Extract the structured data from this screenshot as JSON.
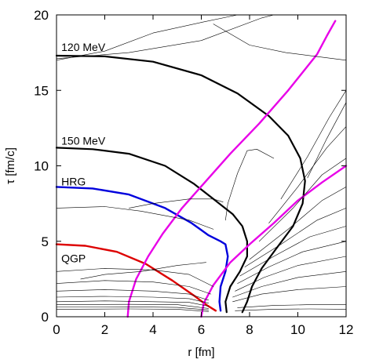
{
  "chart_data": {
    "type": "line",
    "xlabel": "r [fm]",
    "ylabel": "τ [fm/c]",
    "xlim": [
      0,
      12
    ],
    "ylim": [
      0,
      20
    ],
    "x_ticks": [
      0,
      2,
      4,
      6,
      8,
      10,
      12
    ],
    "y_ticks": [
      0,
      5,
      10,
      15,
      20
    ],
    "grid": false,
    "legend": "none",
    "annotations": [
      {
        "text": "120 MeV",
        "x": 0.2,
        "y": 17.6
      },
      {
        "text": "150 MeV",
        "x": 0.2,
        "y": 11.4
      },
      {
        "text": "HRG",
        "x": 0.2,
        "y": 8.7
      },
      {
        "text": "QGP",
        "x": 0.2,
        "y": 3.6
      }
    ],
    "series": [
      {
        "color": "#000000",
        "width": 2.2,
        "points": [
          [
            0,
            17.3
          ],
          [
            2,
            17.25
          ],
          [
            4,
            16.9
          ],
          [
            6,
            16.0
          ],
          [
            7.5,
            14.8
          ],
          [
            8.8,
            13.3
          ],
          [
            9.6,
            12.0
          ],
          [
            10.1,
            10.5
          ],
          [
            10.3,
            9.0
          ],
          [
            10.2,
            7.5
          ],
          [
            9.8,
            6.0
          ],
          [
            9.1,
            4.5
          ],
          [
            8.5,
            3.2
          ],
          [
            8.1,
            2.0
          ],
          [
            7.9,
            1.0
          ],
          [
            7.7,
            0.3
          ]
        ]
      },
      {
        "color": "#000000",
        "width": 2.2,
        "points": [
          [
            0,
            11.2
          ],
          [
            1.5,
            11.1
          ],
          [
            3,
            10.8
          ],
          [
            4.5,
            10.0
          ],
          [
            5.7,
            8.8
          ],
          [
            6.5,
            7.8
          ],
          [
            7.3,
            6.8
          ],
          [
            7.7,
            6.0
          ],
          [
            7.9,
            5.0
          ],
          [
            7.9,
            4.0
          ],
          [
            7.6,
            3.0
          ],
          [
            7.2,
            2.0
          ],
          [
            7.0,
            1.0
          ],
          [
            7.05,
            0.3
          ]
        ]
      },
      {
        "color": "#0000dd",
        "width": 2.4,
        "points": [
          [
            0,
            8.6
          ],
          [
            1.5,
            8.5
          ],
          [
            3,
            8.1
          ],
          [
            4.5,
            7.2
          ],
          [
            5.6,
            6.2
          ],
          [
            6.3,
            5.4
          ],
          [
            6.8,
            5.0
          ],
          [
            7.0,
            4.8
          ],
          [
            7.1,
            4.0
          ],
          [
            7.0,
            3.0
          ],
          [
            6.8,
            2.0
          ],
          [
            6.75,
            1.0
          ],
          [
            6.8,
            0.4
          ]
        ]
      },
      {
        "color": "#dd0000",
        "width": 2.4,
        "points": [
          [
            0,
            4.8
          ],
          [
            1.2,
            4.7
          ],
          [
            2.5,
            4.3
          ],
          [
            3.7,
            3.5
          ],
          [
            4.8,
            2.4
          ],
          [
            5.7,
            1.4
          ],
          [
            6.2,
            0.8
          ],
          [
            6.6,
            0.4
          ]
        ]
      },
      {
        "color": "#e800e8",
        "width": 2.4,
        "points": [
          [
            2.95,
            0
          ],
          [
            3.0,
            1.0
          ],
          [
            3.3,
            2.5
          ],
          [
            3.8,
            4.0
          ],
          [
            4.4,
            5.5
          ],
          [
            5.2,
            7.2
          ],
          [
            6.2,
            9.0
          ],
          [
            7.2,
            10.8
          ],
          [
            8.4,
            12.8
          ],
          [
            9.6,
            15.0
          ],
          [
            10.8,
            17.4
          ],
          [
            11.2,
            18.6
          ],
          [
            11.55,
            19.6
          ]
        ]
      },
      {
        "color": "#e800e8",
        "width": 2.4,
        "points": [
          [
            6.0,
            0
          ],
          [
            6.1,
            0.9
          ],
          [
            6.5,
            2.1
          ],
          [
            7.2,
            3.6
          ],
          [
            8.0,
            4.8
          ],
          [
            9.0,
            6.2
          ],
          [
            10.0,
            7.7
          ],
          [
            11.0,
            8.9
          ],
          [
            12.0,
            10.0
          ]
        ]
      },
      {
        "color": "#000000",
        "width": 0.6,
        "points": [
          [
            0,
            17.0
          ],
          [
            2,
            17.6
          ],
          [
            4,
            18.8
          ],
          [
            6,
            19.5
          ],
          [
            7.5,
            20
          ]
        ]
      },
      {
        "color": "#000000",
        "width": 0.6,
        "points": [
          [
            0,
            17.1
          ],
          [
            3,
            17.5
          ],
          [
            6,
            18.3
          ],
          [
            8.5,
            19.8
          ],
          [
            9,
            20
          ]
        ]
      },
      {
        "color": "#000000",
        "width": 0.6,
        "points": [
          [
            6.5,
            19.4
          ],
          [
            8,
            18.0
          ],
          [
            9.5,
            17.5
          ],
          [
            11,
            17.2
          ],
          [
            12,
            17.0
          ]
        ]
      },
      {
        "color": "#000000",
        "width": 0.6,
        "points": [
          [
            3,
            7.2
          ],
          [
            4,
            7.5
          ],
          [
            5.5,
            7.8
          ],
          [
            6.5,
            7.8
          ],
          [
            6.9,
            7.6
          ]
        ]
      },
      {
        "color": "#000000",
        "width": 0.6,
        "points": [
          [
            0,
            7.2
          ],
          [
            2,
            7.3
          ],
          [
            3.5,
            7.0
          ],
          [
            5.5,
            6.4
          ],
          [
            6.5,
            5.8
          ]
        ]
      },
      {
        "color": "#000000",
        "width": 0.6,
        "points": [
          [
            7.0,
            6.4
          ],
          [
            7.1,
            7.5
          ],
          [
            7.5,
            9.5
          ],
          [
            7.9,
            11.0
          ],
          [
            8.3,
            11.1
          ],
          [
            9.0,
            10.5
          ]
        ]
      },
      {
        "color": "#000000",
        "width": 0.6,
        "points": [
          [
            1,
            2.5
          ],
          [
            2,
            2.8
          ],
          [
            3.5,
            3.0
          ],
          [
            5,
            3.4
          ],
          [
            6.2,
            3.6
          ]
        ]
      },
      {
        "color": "#000000",
        "width": 0.6,
        "points": [
          [
            0,
            3.0
          ],
          [
            2,
            3.2
          ],
          [
            4,
            3.1
          ],
          [
            5.5,
            2.8
          ],
          [
            6.5,
            2.0
          ]
        ]
      },
      {
        "color": "#000000",
        "width": 0.6,
        "points": [
          [
            0,
            2.2
          ],
          [
            2,
            2.4
          ],
          [
            4,
            2.3
          ],
          [
            5.5,
            2.0
          ],
          [
            6.4,
            1.5
          ]
        ]
      },
      {
        "color": "#000000",
        "width": 0.6,
        "points": [
          [
            0,
            1.7
          ],
          [
            2,
            1.8
          ],
          [
            4,
            1.7
          ],
          [
            5.5,
            1.5
          ],
          [
            6.3,
            1.1
          ]
        ]
      },
      {
        "color": "#000000",
        "width": 0.6,
        "points": [
          [
            0,
            1.3
          ],
          [
            2,
            1.35
          ],
          [
            4,
            1.3
          ],
          [
            5.5,
            1.2
          ],
          [
            6.3,
            0.9
          ]
        ]
      },
      {
        "color": "#000000",
        "width": 0.6,
        "points": [
          [
            0,
            1.0
          ],
          [
            2,
            1.05
          ],
          [
            4,
            1.0
          ],
          [
            5.5,
            0.95
          ],
          [
            6.3,
            0.7
          ]
        ]
      },
      {
        "color": "#000000",
        "width": 0.6,
        "points": [
          [
            0,
            0.8
          ],
          [
            3,
            0.82
          ],
          [
            5,
            0.8
          ],
          [
            6.3,
            0.55
          ]
        ]
      },
      {
        "color": "#000000",
        "width": 0.6,
        "points": [
          [
            0,
            0.65
          ],
          [
            3,
            0.66
          ],
          [
            5,
            0.62
          ],
          [
            6.3,
            0.45
          ]
        ]
      },
      {
        "color": "#000000",
        "width": 0.6,
        "points": [
          [
            0,
            0.5
          ],
          [
            3,
            0.52
          ],
          [
            5,
            0.5
          ],
          [
            6.3,
            0.35
          ]
        ]
      },
      {
        "color": "#000000",
        "width": 0.6,
        "points": [
          [
            7.3,
            1.0
          ],
          [
            8.5,
            1.5
          ],
          [
            10,
            1.8
          ],
          [
            12,
            2.0
          ]
        ]
      },
      {
        "color": "#000000",
        "width": 0.6,
        "points": [
          [
            7.3,
            1.3
          ],
          [
            8.5,
            2.0
          ],
          [
            10,
            2.6
          ],
          [
            12,
            3.0
          ]
        ]
      },
      {
        "color": "#000000",
        "width": 0.6,
        "points": [
          [
            7.4,
            1.7
          ],
          [
            8.6,
            2.6
          ],
          [
            10,
            3.4
          ],
          [
            12,
            4.0
          ]
        ]
      },
      {
        "color": "#000000",
        "width": 0.6,
        "points": [
          [
            7.5,
            2.2
          ],
          [
            8.8,
            3.3
          ],
          [
            10.2,
            4.3
          ],
          [
            12,
            5.0
          ]
        ]
      },
      {
        "color": "#000000",
        "width": 0.6,
        "points": [
          [
            7.6,
            2.7
          ],
          [
            9.0,
            4.0
          ],
          [
            10.5,
            5.3
          ],
          [
            12,
            6.0
          ]
        ]
      },
      {
        "color": "#000000",
        "width": 0.6,
        "points": [
          [
            7.8,
            3.3
          ],
          [
            9.3,
            4.8
          ],
          [
            10.8,
            6.4
          ],
          [
            12,
            7.2
          ]
        ]
      },
      {
        "color": "#000000",
        "width": 0.6,
        "points": [
          [
            8.0,
            3.8
          ],
          [
            9.6,
            5.8
          ],
          [
            11.0,
            7.7
          ],
          [
            12,
            8.6
          ]
        ]
      },
      {
        "color": "#000000",
        "width": 0.6,
        "points": [
          [
            8.4,
            5.0
          ],
          [
            9.8,
            7.2
          ],
          [
            11.0,
            9.4
          ],
          [
            12,
            10.5
          ]
        ]
      },
      {
        "color": "#000000",
        "width": 0.6,
        "points": [
          [
            8.8,
            6.2
          ],
          [
            10.0,
            8.6
          ],
          [
            11.2,
            11.2
          ],
          [
            12,
            12.6
          ]
        ]
      },
      {
        "color": "#000000",
        "width": 0.6,
        "points": [
          [
            9.3,
            7.8
          ],
          [
            10.4,
            10.6
          ],
          [
            11.3,
            13.2
          ],
          [
            12,
            15.0
          ]
        ]
      },
      {
        "color": "#000000",
        "width": 0.6,
        "points": [
          [
            10.4,
            9.2
          ],
          [
            11.2,
            11.8
          ],
          [
            12,
            14.2
          ]
        ]
      },
      {
        "color": "#000000",
        "width": 0.6,
        "points": [
          [
            7.5,
            0.6
          ],
          [
            9,
            0.75
          ],
          [
            10.5,
            0.8
          ],
          [
            12,
            0.8
          ]
        ]
      },
      {
        "color": "#000000",
        "width": 0.6,
        "points": [
          [
            7.4,
            0.4
          ],
          [
            9,
            0.5
          ],
          [
            10.5,
            0.52
          ],
          [
            12,
            0.5
          ]
        ]
      }
    ]
  }
}
